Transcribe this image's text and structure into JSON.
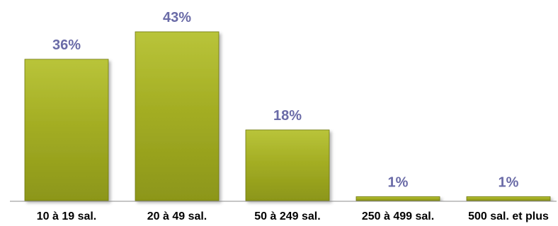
{
  "chart_data": {
    "type": "bar",
    "categories": [
      "10 à 19 sal.",
      "20 à 49 sal.",
      "50 à 249 sal.",
      "250 à 499 sal.",
      "500 sal. et plus"
    ],
    "values": [
      36,
      43,
      18,
      1,
      1
    ],
    "data_labels": [
      "36%",
      "43%",
      "18%",
      "1%",
      "1%"
    ],
    "unit": "%",
    "title": "",
    "xlabel": "",
    "ylabel": "",
    "ylim": [
      0,
      43
    ],
    "grid": false,
    "legend": "none",
    "colors": {
      "bar_top": "#b9c43a",
      "bar_mid": "#a4ae24",
      "bar_bottom": "#8c9619",
      "bar_stroke": "#6f7810",
      "data_label": "#6a6ba7",
      "axis": "#8c8c8c",
      "tick_label": "#000000"
    }
  }
}
